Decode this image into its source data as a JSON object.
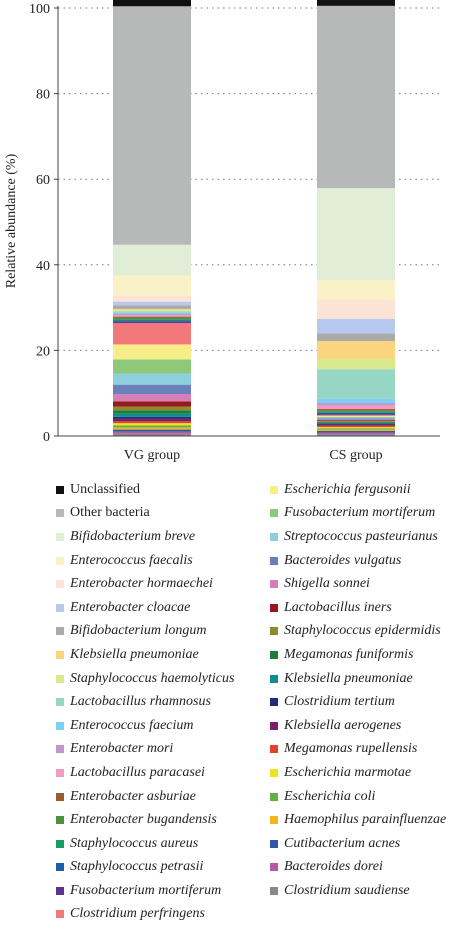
{
  "chart_data": {
    "type": "bar",
    "stacked": true,
    "ylabel": "Relative abundance (%)",
    "ylim": [
      0,
      100
    ],
    "yticks": [
      "0",
      "20",
      "40",
      "60",
      "80",
      "100"
    ],
    "grid": "horizontal-dotted",
    "categories": [
      "VG group",
      "CS group"
    ],
    "series": [
      {
        "name": "Unclassified",
        "italic": false,
        "color": "#111111",
        "values": [
          1.8,
          1.8
        ]
      },
      {
        "name": "Other bacteria",
        "italic": false,
        "color": "#b7b8b8",
        "values": [
          55.7,
          42.6
        ]
      },
      {
        "name": "Bifidobacterium breve",
        "italic": true,
        "color": "#e0eed8",
        "values": [
          7.2,
          21.5
        ]
      },
      {
        "name": "Enterococcus faecalis",
        "italic": true,
        "color": "#fbf1c6",
        "values": [
          4.7,
          4.5
        ]
      },
      {
        "name": "Enterobacter hormaechei",
        "italic": true,
        "color": "#fde3d5",
        "values": [
          1.4,
          4.5
        ]
      },
      {
        "name": "Enterobacter cloacae",
        "italic": true,
        "color": "#b7c9ee",
        "values": [
          0.9,
          3.4
        ]
      },
      {
        "name": "Bifidobacterium longum",
        "italic": true,
        "color": "#a9aaaa",
        "values": [
          0.8,
          1.8
        ]
      },
      {
        "name": "Klebsiella pneumoniae",
        "italic": true,
        "color": "#fad57e",
        "values": [
          0.3,
          4.2
        ]
      },
      {
        "name": "Staphylococcus haemolyticus",
        "italic": true,
        "color": "#d9e98e",
        "values": [
          0.3,
          2.4
        ]
      },
      {
        "name": "Lactobacillus rhamnosus",
        "italic": true,
        "color": "#97d5c5",
        "values": [
          0.3,
          6.9
        ]
      },
      {
        "name": "Enterococcus faecium",
        "italic": true,
        "color": "#7ecff5",
        "values": [
          0.3,
          1.0
        ]
      },
      {
        "name": "Enterobacter mori",
        "italic": true,
        "color": "#c096cc",
        "values": [
          0.3,
          0.6
        ]
      },
      {
        "name": "Lactobacillus paracasei",
        "italic": true,
        "color": "#f49ac4",
        "values": [
          0.3,
          0.8
        ]
      },
      {
        "name": "Enterobacter asburiae",
        "italic": true,
        "color": "#9c5a2e",
        "values": [
          0.3,
          0.3
        ]
      },
      {
        "name": "Enterobacter bugandensis",
        "italic": true,
        "color": "#4c8f3c",
        "values": [
          0.3,
          0.3
        ]
      },
      {
        "name": "Staphylococcus aureus",
        "italic": true,
        "color": "#1a9a64",
        "values": [
          0.3,
          0.3
        ]
      },
      {
        "name": "Staphylococcus petrasii",
        "italic": true,
        "color": "#1a5fa6",
        "values": [
          0.3,
          0.3
        ]
      },
      {
        "name": "Fusobacterium mortiferum",
        "italic": true,
        "color": "#5a3690",
        "values": [
          0.3,
          0.2
        ]
      },
      {
        "name": "Clostridium perfringens",
        "italic": true,
        "color": "#f2787b",
        "values": [
          5.0,
          0.2
        ]
      },
      {
        "name": "Escherichia fergusonii",
        "italic": true,
        "color": "#f7ee8a",
        "values": [
          3.5,
          0.2
        ]
      },
      {
        "name": "Fusobacterium mortiferum",
        "italic": true,
        "color": "#8ec97a",
        "values": [
          3.3,
          0.2
        ]
      },
      {
        "name": "Streptococcus pasteurianus",
        "italic": true,
        "color": "#8ecfde",
        "values": [
          2.6,
          0.2
        ]
      },
      {
        "name": "Bacteroides vulgatus",
        "italic": true,
        "color": "#6b7fba",
        "values": [
          2.2,
          0.2
        ]
      },
      {
        "name": "Shigella sonnei",
        "italic": true,
        "color": "#d57fb6",
        "values": [
          1.7,
          0.2
        ]
      },
      {
        "name": "Lactobacillus iners",
        "italic": true,
        "color": "#98191d",
        "values": [
          1.2,
          0.2
        ]
      },
      {
        "name": "Staphylococcus epidermidis",
        "italic": true,
        "color": "#8f8a2e",
        "values": [
          0.9,
          0.2
        ]
      },
      {
        "name": "Megamonas funiformis",
        "italic": true,
        "color": "#1d7d3d",
        "values": [
          0.8,
          0.2
        ]
      },
      {
        "name": "Klebsiella pneumoniae",
        "italic": true,
        "color": "#0e8e8e",
        "values": [
          0.7,
          0.2
        ]
      },
      {
        "name": "Clostridium tertium",
        "italic": true,
        "color": "#1d2f7a",
        "values": [
          0.5,
          0.2
        ]
      },
      {
        "name": "Klebsiella aerogenes",
        "italic": true,
        "color": "#7a1f6e",
        "values": [
          0.5,
          0.3
        ]
      },
      {
        "name": "Megamonas rupellensis",
        "italic": true,
        "color": "#e0422e",
        "values": [
          0.5,
          0.3
        ]
      },
      {
        "name": "Escherichia marmotae",
        "italic": true,
        "color": "#eee224",
        "values": [
          0.5,
          0.3
        ]
      },
      {
        "name": "Escherichia coli",
        "italic": true,
        "color": "#63b044",
        "values": [
          0.5,
          0.3
        ]
      },
      {
        "name": "Haemophilus parainfluenzae",
        "italic": true,
        "color": "#f4b61a",
        "values": [
          0.5,
          0.3
        ]
      },
      {
        "name": "Cutibacterium acnes",
        "italic": true,
        "color": "#2f58a8",
        "values": [
          0.5,
          0.4
        ]
      },
      {
        "name": "Bacteroides dorei",
        "italic": true,
        "color": "#b55aa7",
        "values": [
          0.5,
          0.4
        ]
      },
      {
        "name": "Clostridium saudiense",
        "italic": true,
        "color": "#8a8a8a",
        "values": [
          0.5,
          0.4
        ]
      }
    ]
  }
}
